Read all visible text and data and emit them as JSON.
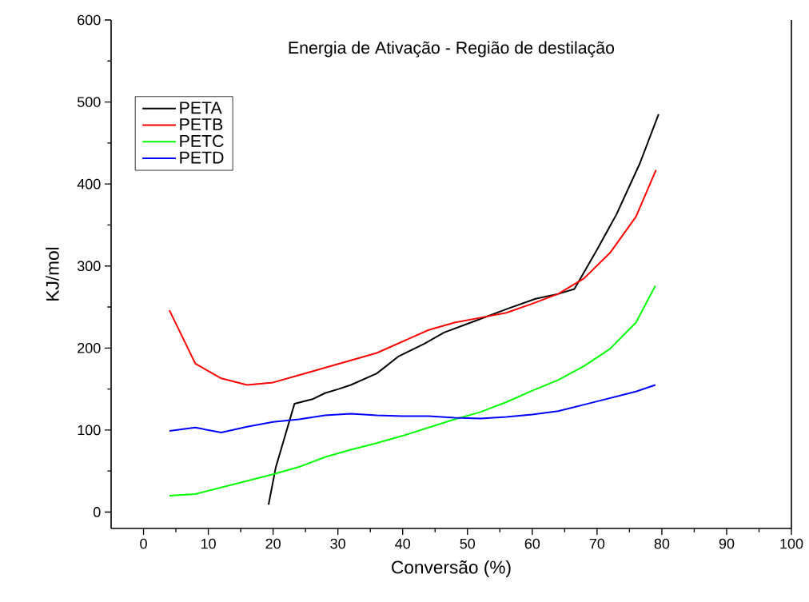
{
  "chart_data": {
    "type": "line",
    "title": "Energia de Ativação - Região de destilação",
    "xlabel": "Conversão (%)",
    "ylabel": "KJ/mol",
    "xlim": [
      -5,
      100
    ],
    "ylim": [
      -20,
      600
    ],
    "xticks": [
      0,
      10,
      20,
      30,
      40,
      50,
      60,
      70,
      80,
      90,
      100
    ],
    "yticks": [
      0,
      100,
      200,
      300,
      400,
      500,
      600
    ],
    "legend": "top left",
    "grid": false,
    "marker": "none",
    "line_style": "solid",
    "series": [
      {
        "name": "PETA",
        "color": "#000000",
        "x": [
          19.3,
          20.4,
          23.3,
          26.2,
          28,
          30.1,
          32,
          36,
          39.4,
          43.3,
          46.4,
          50.5,
          56.2,
          60.5,
          64,
          66.5,
          70,
          73,
          76.6,
          79.5
        ],
        "values": [
          9,
          54,
          132,
          138,
          145,
          150,
          155,
          169,
          190,
          205,
          219,
          231,
          248,
          260,
          266,
          272,
          320,
          363,
          425,
          485
        ]
      },
      {
        "name": "PETB",
        "color": "#ff0000",
        "x": [
          4,
          8,
          12,
          16,
          20,
          24,
          28,
          32,
          36,
          40,
          44,
          48,
          52,
          56,
          60,
          64,
          68,
          72,
          76,
          79.1
        ],
        "values": [
          246,
          181,
          163,
          155,
          158,
          167,
          176,
          185,
          194,
          208,
          222,
          231,
          237,
          243,
          254,
          266,
          285,
          316,
          360,
          417
        ]
      },
      {
        "name": "PETC",
        "color": "#00ff00",
        "x": [
          4,
          8,
          12,
          16,
          20,
          24,
          28,
          32,
          36,
          40,
          44,
          48,
          52,
          56,
          60,
          64,
          68,
          72,
          76,
          79
        ],
        "values": [
          20,
          22,
          30,
          38,
          46,
          55,
          67,
          76,
          84,
          93,
          103,
          113,
          122,
          134,
          148,
          161,
          178,
          199,
          231,
          276
        ]
      },
      {
        "name": "PETD",
        "color": "#0000ff",
        "x": [
          4,
          8,
          12,
          16,
          20,
          24,
          28,
          32,
          36,
          40,
          44,
          48,
          52,
          56,
          60,
          64,
          68,
          72,
          76,
          79
        ],
        "values": [
          99,
          103,
          97,
          104,
          110,
          113,
          118,
          120,
          118,
          117,
          117,
          115,
          114,
          116,
          119,
          123,
          131,
          139,
          147,
          155
        ]
      }
    ]
  }
}
